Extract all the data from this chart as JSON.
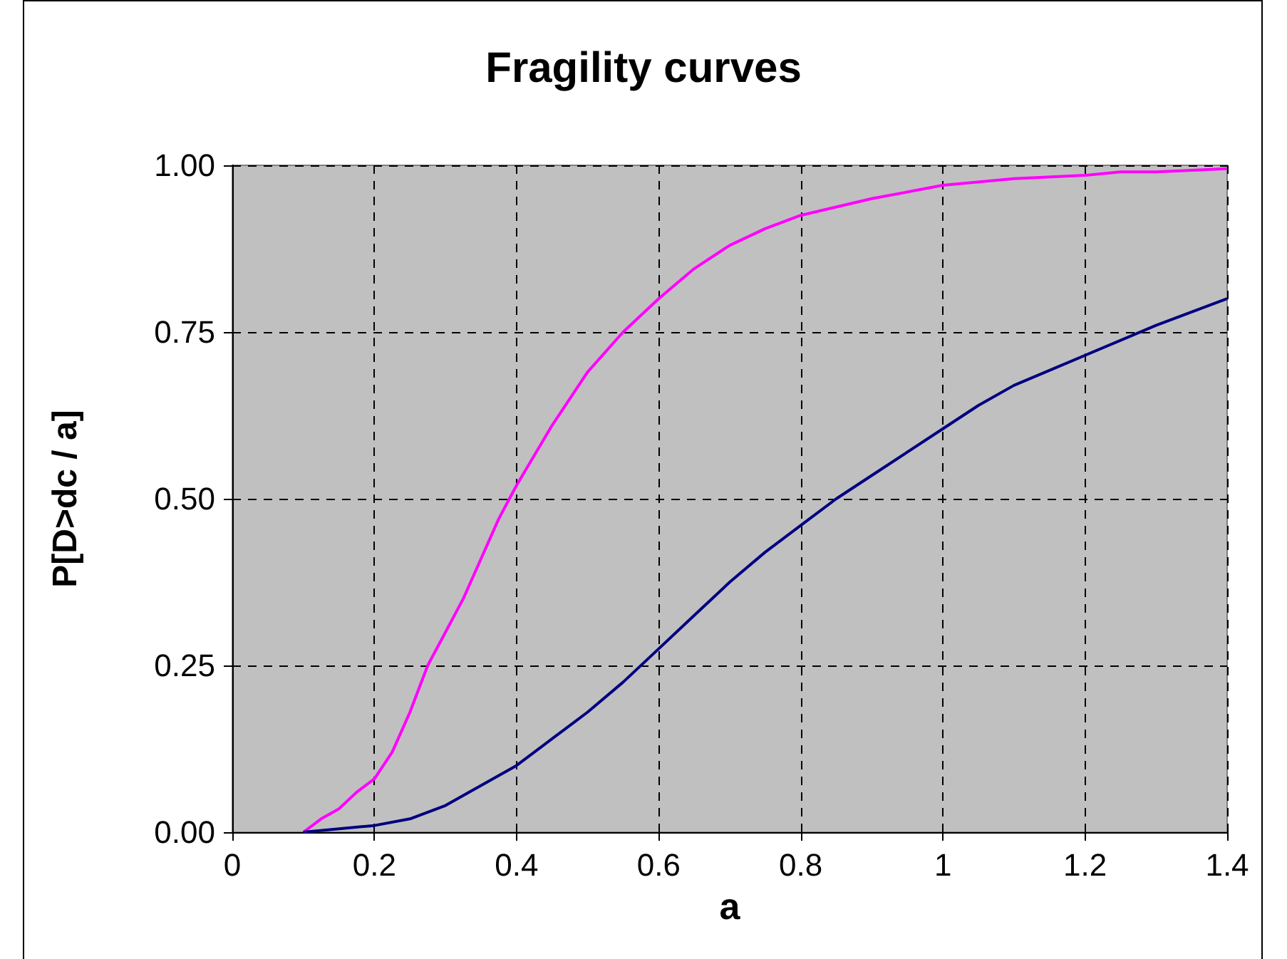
{
  "chart_data": {
    "type": "line",
    "title": "Fragility curves",
    "xlabel": "a",
    "ylabel": "P[D>dc / a]",
    "xlim": [
      0,
      1.4
    ],
    "xticks": [
      0,
      0.2,
      0.4,
      0.6,
      0.8,
      1,
      1.2,
      1.4
    ],
    "ylim": [
      0,
      1
    ],
    "yticks": [
      {
        "value": 0,
        "label": "0.00"
      },
      {
        "value": 0.25,
        "label": "0.25"
      },
      {
        "value": 0.5,
        "label": "0.50"
      },
      {
        "value": 0.75,
        "label": "0.75"
      },
      {
        "value": 1,
        "label": "1.00"
      }
    ],
    "grid": true,
    "marker": "none",
    "line_style": "solid",
    "series": [
      {
        "color": "#ff00ff",
        "x": [
          0.1,
          0.125,
          0.15,
          0.175,
          0.2,
          0.225,
          0.25,
          0.275,
          0.3,
          0.325,
          0.35,
          0.375,
          0.4,
          0.45,
          0.5,
          0.55,
          0.6,
          0.65,
          0.7,
          0.75,
          0.8,
          0.9,
          1.0,
          1.1,
          1.2,
          1.25,
          1.3,
          1.4
        ],
        "values": [
          0,
          0.02,
          0.035,
          0.06,
          0.08,
          0.12,
          0.18,
          0.25,
          0.3,
          0.35,
          0.41,
          0.47,
          0.52,
          0.61,
          0.69,
          0.75,
          0.8,
          0.845,
          0.88,
          0.905,
          0.925,
          0.95,
          0.97,
          0.98,
          0.985,
          0.99,
          0.99,
          0.995
        ]
      },
      {
        "color": "#000080",
        "x": [
          0.1,
          0.2,
          0.25,
          0.3,
          0.35,
          0.4,
          0.45,
          0.5,
          0.55,
          0.6,
          0.65,
          0.7,
          0.75,
          0.8,
          0.85,
          0.9,
          1.0,
          1.05,
          1.1,
          1.2,
          1.3,
          1.4
        ],
        "values": [
          0,
          0.01,
          0.02,
          0.04,
          0.07,
          0.1,
          0.14,
          0.18,
          0.225,
          0.275,
          0.325,
          0.375,
          0.42,
          0.46,
          0.5,
          0.535,
          0.605,
          0.64,
          0.67,
          0.715,
          0.76,
          0.8
        ]
      }
    ]
  }
}
